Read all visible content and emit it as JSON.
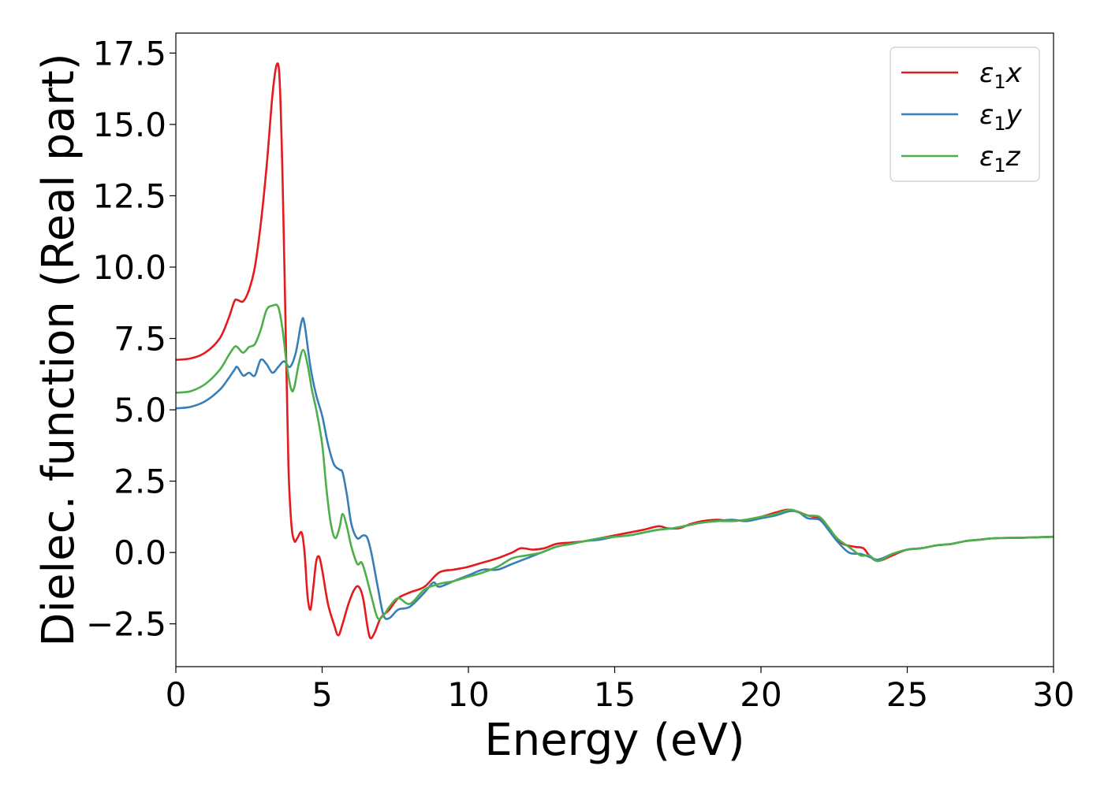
{
  "chart_data": {
    "type": "line",
    "title": "",
    "xlabel": "Energy (eV)",
    "ylabel": "Dielec. function (Real part)",
    "xlim": [
      0,
      30
    ],
    "ylim": [
      -4,
      18.2
    ],
    "xticks": [
      0,
      5,
      10,
      15,
      20,
      25,
      30
    ],
    "yticks": [
      -2.5,
      0.0,
      2.5,
      5.0,
      7.5,
      10.0,
      12.5,
      15.0,
      17.5
    ],
    "ytick_labels": [
      "−2.5",
      "0.0",
      "2.5",
      "5.0",
      "7.5",
      "10.0",
      "12.5",
      "15.0",
      "17.5"
    ],
    "xtick_labels": [
      "0",
      "5",
      "10",
      "15",
      "20",
      "25",
      "30"
    ],
    "grid": false,
    "legend_position": "top-right",
    "series": [
      {
        "name_main": "ε",
        "name_sub": "1",
        "name_tail": "x",
        "color": "#e41a1c",
        "points": [
          [
            0,
            6.75
          ],
          [
            0.5,
            6.8
          ],
          [
            1.0,
            7.0
          ],
          [
            1.5,
            7.5
          ],
          [
            1.8,
            8.2
          ],
          [
            2.0,
            8.8
          ],
          [
            2.1,
            8.85
          ],
          [
            2.3,
            8.8
          ],
          [
            2.5,
            9.2
          ],
          [
            2.7,
            10.0
          ],
          [
            2.9,
            11.5
          ],
          [
            3.1,
            13.5
          ],
          [
            3.3,
            16.0
          ],
          [
            3.45,
            17.1
          ],
          [
            3.55,
            16.5
          ],
          [
            3.65,
            13.0
          ],
          [
            3.75,
            8.0
          ],
          [
            3.85,
            3.0
          ],
          [
            3.95,
            1.0
          ],
          [
            4.05,
            0.4
          ],
          [
            4.15,
            0.5
          ],
          [
            4.3,
            0.7
          ],
          [
            4.4,
            0.0
          ],
          [
            4.5,
            -1.5
          ],
          [
            4.6,
            -2.0
          ],
          [
            4.7,
            -1.2
          ],
          [
            4.8,
            -0.3
          ],
          [
            4.9,
            -0.15
          ],
          [
            5.0,
            -0.6
          ],
          [
            5.2,
            -1.8
          ],
          [
            5.4,
            -2.5
          ],
          [
            5.55,
            -2.9
          ],
          [
            5.7,
            -2.5
          ],
          [
            5.9,
            -1.8
          ],
          [
            6.1,
            -1.3
          ],
          [
            6.25,
            -1.2
          ],
          [
            6.4,
            -1.6
          ],
          [
            6.55,
            -2.6
          ],
          [
            6.65,
            -3.0
          ],
          [
            6.8,
            -2.8
          ],
          [
            7.0,
            -2.3
          ],
          [
            7.3,
            -2.0
          ],
          [
            7.6,
            -1.6
          ],
          [
            8.0,
            -1.4
          ],
          [
            8.5,
            -1.2
          ],
          [
            9.0,
            -0.7
          ],
          [
            9.5,
            -0.6
          ],
          [
            10.0,
            -0.5
          ],
          [
            10.5,
            -0.35
          ],
          [
            11.0,
            -0.2
          ],
          [
            11.5,
            0.0
          ],
          [
            11.8,
            0.15
          ],
          [
            12.2,
            0.1
          ],
          [
            12.6,
            0.15
          ],
          [
            13.0,
            0.3
          ],
          [
            13.5,
            0.35
          ],
          [
            14.0,
            0.4
          ],
          [
            14.5,
            0.5
          ],
          [
            15.0,
            0.6
          ],
          [
            15.5,
            0.7
          ],
          [
            16.0,
            0.8
          ],
          [
            16.5,
            0.92
          ],
          [
            16.8,
            0.85
          ],
          [
            17.2,
            0.85
          ],
          [
            17.6,
            1.0
          ],
          [
            18.0,
            1.1
          ],
          [
            18.5,
            1.15
          ],
          [
            19.0,
            1.1
          ],
          [
            19.5,
            1.15
          ],
          [
            20.0,
            1.25
          ],
          [
            20.5,
            1.4
          ],
          [
            20.9,
            1.5
          ],
          [
            21.2,
            1.45
          ],
          [
            21.6,
            1.3
          ],
          [
            22.0,
            1.2
          ],
          [
            22.2,
            1.0
          ],
          [
            22.5,
            0.6
          ],
          [
            22.8,
            0.3
          ],
          [
            23.2,
            0.2
          ],
          [
            23.5,
            0.15
          ],
          [
            23.7,
            -0.1
          ],
          [
            24.0,
            -0.3
          ],
          [
            24.5,
            -0.1
          ],
          [
            25.0,
            0.1
          ],
          [
            25.5,
            0.15
          ],
          [
            26.0,
            0.25
          ],
          [
            26.5,
            0.3
          ],
          [
            27.0,
            0.4
          ],
          [
            27.5,
            0.45
          ],
          [
            28.0,
            0.5
          ],
          [
            29.0,
            0.52
          ],
          [
            30.0,
            0.55
          ]
        ]
      },
      {
        "name_main": "ε",
        "name_sub": "1",
        "name_tail": "y",
        "color": "#377eb8",
        "points": [
          [
            0,
            5.05
          ],
          [
            0.5,
            5.1
          ],
          [
            1.0,
            5.3
          ],
          [
            1.5,
            5.7
          ],
          [
            1.8,
            6.1
          ],
          [
            2.0,
            6.4
          ],
          [
            2.1,
            6.5
          ],
          [
            2.3,
            6.2
          ],
          [
            2.5,
            6.3
          ],
          [
            2.7,
            6.2
          ],
          [
            2.9,
            6.75
          ],
          [
            3.1,
            6.6
          ],
          [
            3.3,
            6.3
          ],
          [
            3.5,
            6.5
          ],
          [
            3.7,
            6.7
          ],
          [
            3.9,
            6.5
          ],
          [
            4.1,
            7.0
          ],
          [
            4.3,
            8.1
          ],
          [
            4.4,
            8.0
          ],
          [
            4.6,
            6.5
          ],
          [
            4.8,
            5.5
          ],
          [
            5.0,
            4.8
          ],
          [
            5.2,
            3.8
          ],
          [
            5.4,
            3.1
          ],
          [
            5.6,
            2.9
          ],
          [
            5.7,
            2.8
          ],
          [
            5.85,
            2.0
          ],
          [
            6.0,
            1.0
          ],
          [
            6.2,
            0.5
          ],
          [
            6.4,
            0.6
          ],
          [
            6.55,
            0.5
          ],
          [
            6.7,
            -0.1
          ],
          [
            6.9,
            -1.2
          ],
          [
            7.1,
            -2.2
          ],
          [
            7.3,
            -2.3
          ],
          [
            7.6,
            -2.0
          ],
          [
            8.0,
            -1.9
          ],
          [
            8.5,
            -1.4
          ],
          [
            8.8,
            -1.05
          ],
          [
            9.0,
            -1.2
          ],
          [
            9.5,
            -1.0
          ],
          [
            10.0,
            -0.8
          ],
          [
            10.5,
            -0.6
          ],
          [
            11.0,
            -0.6
          ],
          [
            11.5,
            -0.4
          ],
          [
            12.0,
            -0.2
          ],
          [
            12.5,
            0.0
          ],
          [
            13.0,
            0.2
          ],
          [
            13.5,
            0.3
          ],
          [
            14.0,
            0.4
          ],
          [
            14.5,
            0.45
          ],
          [
            15.0,
            0.55
          ],
          [
            15.5,
            0.6
          ],
          [
            16.0,
            0.7
          ],
          [
            16.5,
            0.8
          ],
          [
            17.0,
            0.85
          ],
          [
            17.5,
            0.95
          ],
          [
            18.0,
            1.05
          ],
          [
            18.5,
            1.1
          ],
          [
            19.0,
            1.15
          ],
          [
            19.5,
            1.1
          ],
          [
            20.0,
            1.2
          ],
          [
            20.5,
            1.3
          ],
          [
            21.0,
            1.45
          ],
          [
            21.3,
            1.4
          ],
          [
            21.6,
            1.2
          ],
          [
            22.0,
            1.15
          ],
          [
            22.3,
            0.8
          ],
          [
            22.6,
            0.4
          ],
          [
            23.0,
            0.0
          ],
          [
            23.4,
            -0.05
          ],
          [
            23.7,
            -0.15
          ],
          [
            24.0,
            -0.25
          ],
          [
            24.5,
            -0.05
          ],
          [
            25.0,
            0.1
          ],
          [
            25.5,
            0.15
          ],
          [
            26.0,
            0.25
          ],
          [
            26.5,
            0.3
          ],
          [
            27.0,
            0.4
          ],
          [
            27.5,
            0.45
          ],
          [
            28.0,
            0.5
          ],
          [
            29.0,
            0.52
          ],
          [
            30.0,
            0.55
          ]
        ]
      },
      {
        "name_main": "ε",
        "name_sub": "1",
        "name_tail": "z",
        "color": "#4daf4a",
        "points": [
          [
            0,
            5.6
          ],
          [
            0.5,
            5.65
          ],
          [
            1.0,
            5.9
          ],
          [
            1.5,
            6.4
          ],
          [
            1.8,
            6.9
          ],
          [
            2.0,
            7.2
          ],
          [
            2.1,
            7.2
          ],
          [
            2.3,
            7.0
          ],
          [
            2.5,
            7.2
          ],
          [
            2.7,
            7.3
          ],
          [
            2.9,
            7.8
          ],
          [
            3.1,
            8.5
          ],
          [
            3.3,
            8.65
          ],
          [
            3.5,
            8.6
          ],
          [
            3.65,
            7.8
          ],
          [
            3.8,
            6.5
          ],
          [
            3.95,
            5.7
          ],
          [
            4.05,
            5.8
          ],
          [
            4.2,
            6.6
          ],
          [
            4.35,
            7.1
          ],
          [
            4.5,
            6.6
          ],
          [
            4.65,
            5.7
          ],
          [
            4.8,
            5.0
          ],
          [
            5.0,
            3.8
          ],
          [
            5.15,
            2.2
          ],
          [
            5.3,
            1.0
          ],
          [
            5.45,
            0.5
          ],
          [
            5.6,
            0.9
          ],
          [
            5.7,
            1.35
          ],
          [
            5.85,
            0.9
          ],
          [
            6.0,
            0.2
          ],
          [
            6.2,
            -0.4
          ],
          [
            6.35,
            -0.35
          ],
          [
            6.5,
            -0.8
          ],
          [
            6.7,
            -1.6
          ],
          [
            6.9,
            -2.3
          ],
          [
            7.1,
            -2.2
          ],
          [
            7.3,
            -1.9
          ],
          [
            7.6,
            -1.6
          ],
          [
            8.0,
            -1.8
          ],
          [
            8.5,
            -1.3
          ],
          [
            9.0,
            -1.1
          ],
          [
            9.5,
            -1.0
          ],
          [
            10.0,
            -0.85
          ],
          [
            10.5,
            -0.7
          ],
          [
            11.0,
            -0.5
          ],
          [
            11.5,
            -0.2
          ],
          [
            12.0,
            -0.1
          ],
          [
            12.5,
            0.0
          ],
          [
            13.0,
            0.2
          ],
          [
            13.5,
            0.3
          ],
          [
            14.0,
            0.4
          ],
          [
            14.5,
            0.5
          ],
          [
            15.0,
            0.55
          ],
          [
            15.5,
            0.6
          ],
          [
            16.0,
            0.7
          ],
          [
            16.5,
            0.8
          ],
          [
            17.0,
            0.85
          ],
          [
            17.5,
            0.95
          ],
          [
            18.0,
            1.05
          ],
          [
            18.5,
            1.1
          ],
          [
            19.0,
            1.1
          ],
          [
            19.5,
            1.15
          ],
          [
            20.0,
            1.25
          ],
          [
            20.5,
            1.35
          ],
          [
            21.0,
            1.5
          ],
          [
            21.3,
            1.4
          ],
          [
            21.6,
            1.3
          ],
          [
            22.0,
            1.25
          ],
          [
            22.3,
            0.9
          ],
          [
            22.6,
            0.5
          ],
          [
            23.0,
            0.2
          ],
          [
            23.4,
            -0.1
          ],
          [
            23.7,
            -0.1
          ],
          [
            24.0,
            -0.3
          ],
          [
            24.5,
            -0.05
          ],
          [
            25.0,
            0.1
          ],
          [
            25.5,
            0.15
          ],
          [
            26.0,
            0.25
          ],
          [
            26.5,
            0.3
          ],
          [
            27.0,
            0.4
          ],
          [
            27.5,
            0.45
          ],
          [
            28.0,
            0.5
          ],
          [
            29.0,
            0.52
          ],
          [
            30.0,
            0.55
          ]
        ]
      }
    ]
  }
}
